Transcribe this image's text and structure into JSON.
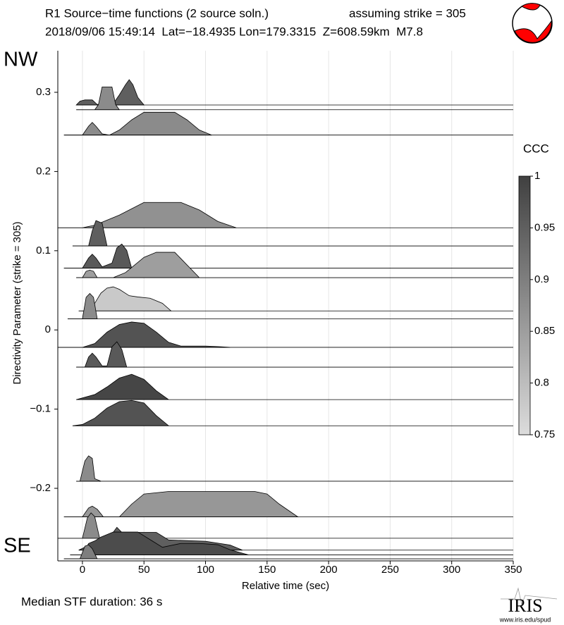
{
  "chart_data": {
    "type": "ridgeline",
    "title": "R1 Source−time functions (2 source soln.)",
    "title_note": "assuming strike = 305",
    "subtitle": "2018/09/06 15:49:14  Lat=−18.4935 Lon=179.3315  Z=608.59km  M7.8",
    "xlabel": "Relative time (sec)",
    "ylabel": "Directivity Parameter (strike = 305)",
    "top_label": "NW",
    "bottom_label": "SE",
    "footer": "Median STF duration: 36 s",
    "logo": "IRIS",
    "logo_url": "www.iris.edu/spud",
    "xlim": [
      -20,
      350
    ],
    "xticks": [
      0,
      50,
      100,
      150,
      200,
      250,
      300,
      350
    ],
    "ylim": [
      -0.2916,
      0.3525
    ],
    "yticks": [
      {
        "value": -0.2,
        "label": "−0.2"
      },
      {
        "value": -0.1,
        "label": "−0.1"
      },
      0,
      0.1,
      0.2,
      0.3
    ],
    "grid": true,
    "colorbar": {
      "label": "CCC",
      "lim": [
        0.75,
        1
      ],
      "ticks": [
        0.75,
        0.8,
        0.85,
        0.9,
        0.95,
        1
      ],
      "colors": [
        "#dcdcdc",
        "#404040"
      ]
    },
    "traces": [
      {
        "directivity": 0.284,
        "ccc": 0.95,
        "t": [
          -5,
          -2,
          2,
          8,
          12,
          25,
          30,
          35,
          38,
          41,
          45,
          50
        ],
        "amp": [
          0,
          0.15,
          0.2,
          0.2,
          0.02,
          0.05,
          0.4,
          0.8,
          1,
          0.8,
          0.3,
          0
        ]
      },
      {
        "directivity": 0.278,
        "ccc": 0.88,
        "t": [
          -5,
          10,
          13,
          16,
          24,
          27,
          30
        ],
        "amp": [
          0,
          0,
          0.2,
          0.9,
          0.9,
          0.2,
          0
        ]
      },
      {
        "directivity": 0.246,
        "ccc": 0.88,
        "t": [
          -15,
          0,
          5,
          8,
          11,
          16,
          22,
          30,
          40,
          50,
          75,
          85,
          95,
          105
        ],
        "amp": [
          0,
          0,
          0.35,
          0.5,
          0.35,
          0.05,
          0,
          0.2,
          0.6,
          0.9,
          0.9,
          0.6,
          0.2,
          0
        ]
      },
      {
        "directivity": 0.129,
        "ccc": 0.87,
        "t": [
          -20,
          0,
          10,
          30,
          50,
          80,
          95,
          110,
          125
        ],
        "amp": [
          0,
          0,
          0.1,
          0.5,
          1,
          1,
          0.7,
          0.25,
          0
        ]
      },
      {
        "directivity": 0.106,
        "ccc": 0.95,
        "t": [
          -8,
          5,
          8,
          11,
          16,
          20
        ],
        "amp": [
          0,
          0,
          0.6,
          1,
          0.9,
          0
        ]
      },
      {
        "directivity": 0.078,
        "ccc": 0.96,
        "t": [
          -15,
          0,
          5,
          8,
          11,
          16,
          24,
          28,
          32,
          36,
          40
        ],
        "amp": [
          0,
          0,
          0.4,
          0.55,
          0.4,
          0.05,
          0.2,
          0.8,
          0.95,
          0.7,
          0
        ]
      },
      {
        "directivity": 0.066,
        "ccc": 0.85,
        "t": [
          -5,
          0,
          3,
          6,
          9,
          12,
          25,
          35,
          50,
          60,
          75,
          85,
          95
        ],
        "amp": [
          0,
          0,
          0.25,
          0.3,
          0.25,
          0,
          0,
          0.2,
          0.8,
          1,
          1,
          0.5,
          0
        ]
      },
      {
        "directivity": 0.024,
        "ccc": 0.78,
        "t": [
          -3,
          5,
          10,
          15,
          20,
          25,
          30,
          38,
          45,
          55,
          65,
          72
        ],
        "amp": [
          0,
          0,
          0.3,
          0.7,
          0.9,
          0.95,
          0.85,
          0.6,
          0.55,
          0.5,
          0.3,
          0
        ]
      },
      {
        "directivity": 0.014,
        "ccc": 0.88,
        "t": [
          -12,
          0,
          3,
          6,
          9,
          12
        ],
        "amp": [
          0,
          0,
          0.85,
          1,
          0.85,
          0
        ]
      },
      {
        "directivity": -0.022,
        "ccc": 0.97,
        "t": [
          -20,
          0,
          10,
          20,
          30,
          40,
          50,
          60,
          70,
          80,
          100,
          110,
          120
        ],
        "amp": [
          0,
          0,
          0.15,
          0.6,
          0.9,
          1,
          0.95,
          0.6,
          0.2,
          0.05,
          0.05,
          0.03,
          0
        ]
      },
      {
        "directivity": -0.047,
        "ccc": 0.96,
        "t": [
          -5,
          2,
          5,
          8,
          11,
          16,
          20,
          24,
          28,
          32,
          36
        ],
        "amp": [
          0,
          0,
          0.4,
          0.55,
          0.4,
          0.05,
          0.05,
          0.8,
          1,
          0.7,
          0
        ]
      },
      {
        "directivity": -0.088,
        "ccc": 0.99,
        "t": [
          -5,
          10,
          20,
          30,
          40,
          50,
          60,
          70
        ],
        "amp": [
          0,
          0.2,
          0.5,
          0.85,
          1,
          0.8,
          0.35,
          0
        ]
      },
      {
        "directivity": -0.121,
        "ccc": 0.97,
        "t": [
          -8,
          0,
          10,
          20,
          30,
          40,
          50,
          60,
          70
        ],
        "amp": [
          0,
          0.05,
          0.3,
          0.7,
          0.95,
          1,
          0.9,
          0.4,
          0
        ]
      },
      {
        "directivity": -0.191,
        "ccc": 0.88,
        "t": [
          -5,
          -2,
          2,
          5,
          8,
          10,
          15
        ],
        "amp": [
          0,
          0,
          0.8,
          1,
          0.9,
          0.1,
          0
        ]
      },
      {
        "directivity": -0.236,
        "ccc": 0.86,
        "t": [
          -15,
          0,
          5,
          8,
          12,
          17,
          30,
          40,
          50,
          70,
          140,
          150,
          160,
          175
        ],
        "amp": [
          0,
          0,
          0.35,
          0.42,
          0.3,
          0,
          0,
          0.5,
          0.9,
          1,
          1,
          0.9,
          0.5,
          0
        ]
      },
      {
        "directivity": -0.263,
        "ccc": 0.88,
        "t": [
          -20,
          0,
          4,
          7,
          10,
          14
        ],
        "amp": [
          0,
          0,
          0.8,
          1,
          0.85,
          0
        ]
      },
      {
        "directivity": -0.278,
        "ccc": 0.95,
        "t": [
          -3,
          10,
          20,
          25,
          28,
          32,
          45,
          60,
          70,
          100,
          120,
          130
        ],
        "amp": [
          0,
          0.3,
          0.55,
          0.7,
          0.9,
          0.7,
          0.7,
          0.7,
          0.4,
          0.35,
          0.2,
          0
        ]
      },
      {
        "directivity": -0.284,
        "ccc": 0.98,
        "t": [
          -10,
          0,
          5,
          10,
          15,
          25,
          45,
          55,
          65,
          80,
          95,
          110,
          120,
          135
        ],
        "amp": [
          0,
          0,
          0.45,
          0.55,
          0.7,
          0.9,
          0.9,
          0.6,
          0.3,
          0.45,
          0.45,
          0.4,
          0.2,
          0
        ]
      },
      {
        "directivity": -0.289,
        "ccc": 0.9,
        "t": [
          -15,
          -2,
          2,
          5,
          8,
          12
        ],
        "amp": [
          0,
          0,
          0.5,
          0.55,
          0.4,
          0
        ]
      }
    ]
  }
}
